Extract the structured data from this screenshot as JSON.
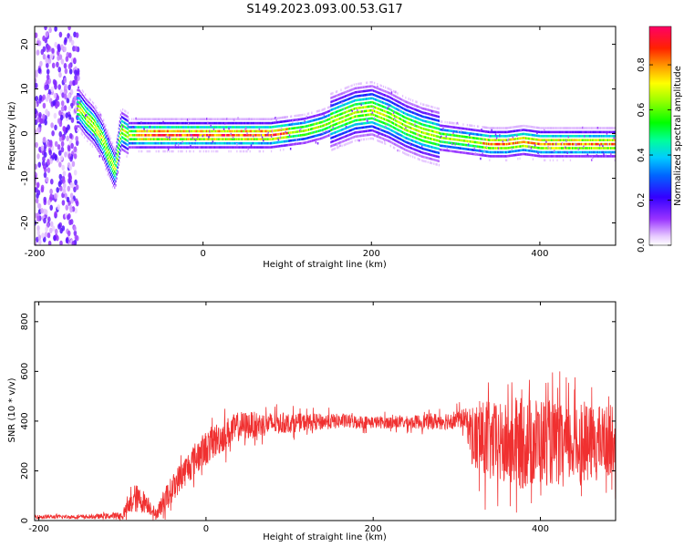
{
  "figure": {
    "title": "S149.2023.093.00.53.G17"
  },
  "chart_data": [
    {
      "type": "heatmap",
      "xlabel": "Height of straight line (km)",
      "ylabel": "Frequency (Hz)",
      "xlim": [
        -200,
        490
      ],
      "ylim": [
        -25,
        24
      ],
      "x_ticks": [
        -200,
        0,
        200,
        400
      ],
      "y_ticks": [
        20,
        10,
        0,
        -10,
        -20
      ],
      "colorbar": {
        "label": "Normalized spectral amplitude",
        "range": [
          0.0,
          0.97
        ],
        "ticks": [
          0.0,
          0.2,
          0.4,
          0.6,
          0.8
        ]
      },
      "ridge": {
        "description_points_x": [
          -148,
          -140,
          -130,
          -120,
          -112,
          -105,
          -98,
          -90,
          -70,
          -40,
          0,
          40,
          80,
          100,
          120,
          140,
          160,
          180,
          200,
          220,
          240,
          260,
          280,
          300,
          320,
          340,
          360,
          380,
          400,
          420,
          440,
          460,
          490
        ],
        "frequency_y": [
          6,
          4,
          2,
          -1,
          -5,
          -8,
          1,
          0,
          0,
          0,
          0,
          0,
          0,
          0.5,
          1,
          2,
          3.5,
          5,
          5.5,
          4,
          2,
          0.5,
          -0.5,
          -1,
          -1.5,
          -2,
          -2,
          -1.5,
          -2,
          -2,
          -2,
          -2,
          -2
        ]
      },
      "noise_band_x": [
        -200,
        -148
      ]
    },
    {
      "type": "line",
      "xlabel": "Height of straight line (km)",
      "ylabel": "SNR (10 * v/v)",
      "xlim": [
        -205,
        490
      ],
      "ylim": [
        0,
        880
      ],
      "x_ticks": [
        -200,
        0,
        200,
        400
      ],
      "y_ticks": [
        0,
        200,
        400,
        600,
        800
      ],
      "color": "#f03030",
      "envelope": {
        "x": [
          -205,
          -140,
          -100,
          -85,
          -70,
          -60,
          -50,
          -30,
          -10,
          10,
          40,
          80,
          120,
          160,
          200,
          240,
          280,
          310,
          320,
          330,
          360,
          380,
          400,
          430,
          460,
          490
        ],
        "mean": [
          15,
          15,
          20,
          90,
          70,
          25,
          80,
          180,
          260,
          320,
          380,
          390,
          395,
          400,
          395,
          395,
          400,
          410,
          330,
          320,
          300,
          310,
          320,
          300,
          310,
          330
        ],
        "noise": [
          8,
          8,
          15,
          60,
          40,
          20,
          50,
          60,
          70,
          70,
          60,
          45,
          35,
          30,
          25,
          25,
          35,
          40,
          140,
          160,
          170,
          190,
          180,
          160,
          150,
          140
        ]
      }
    }
  ]
}
